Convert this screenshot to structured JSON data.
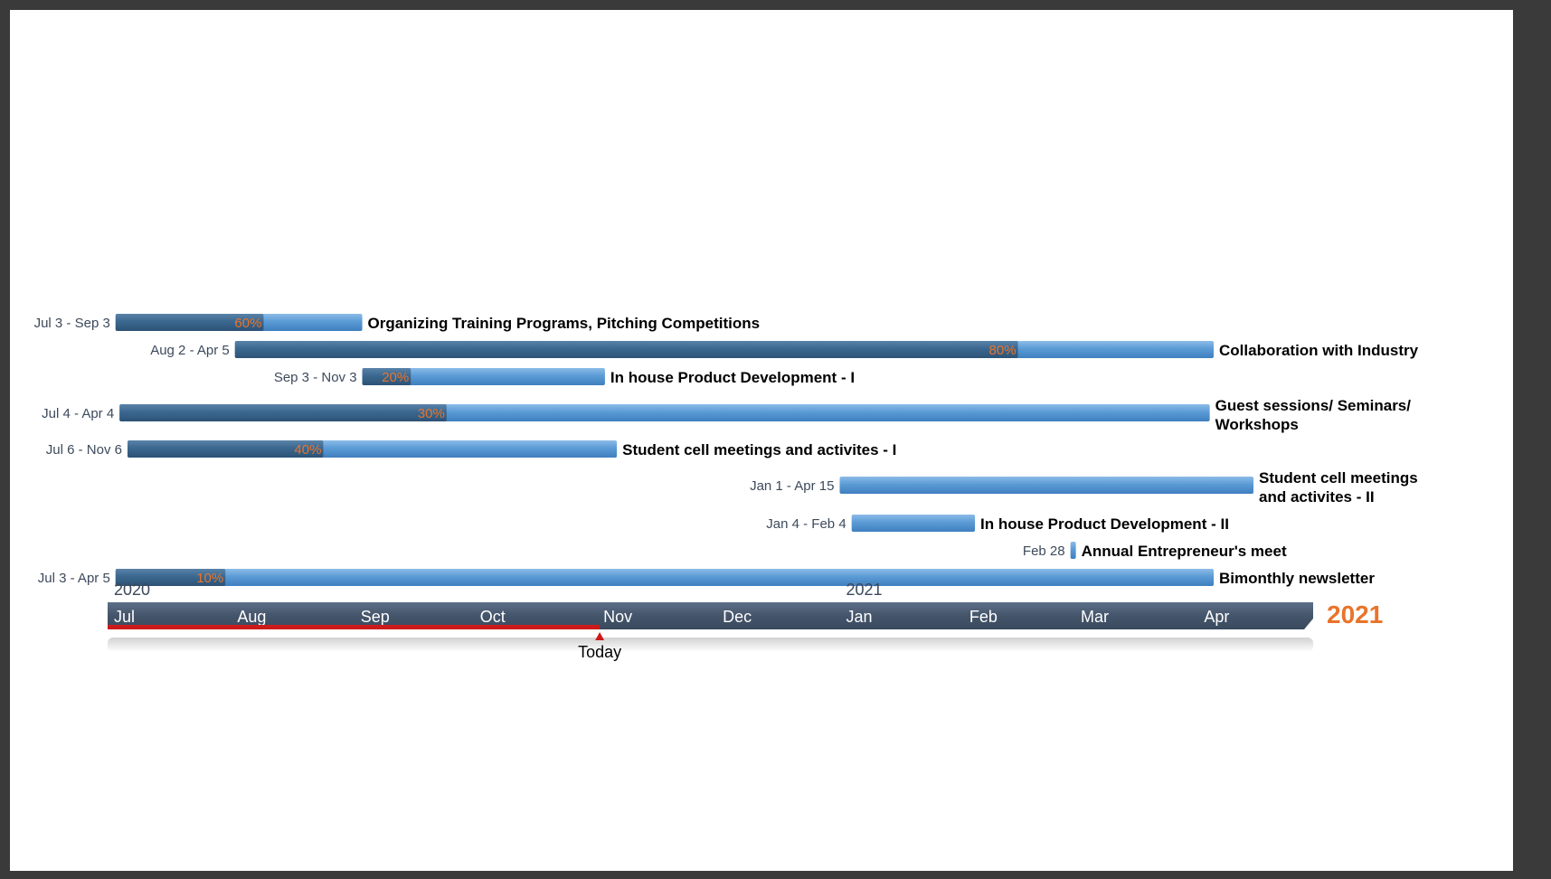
{
  "chart_data": {
    "type": "gantt",
    "x_range": [
      "2020-07-01",
      "2021-04-30"
    ],
    "today": {
      "label": "Today",
      "date": "2020-11-01"
    },
    "end_year_label": "2021",
    "years": [
      {
        "label": "2020",
        "date": "2020-07-01"
      },
      {
        "label": "2021",
        "date": "2021-01-01"
      }
    ],
    "months": [
      {
        "label": "Jul",
        "date": "2020-07-01"
      },
      {
        "label": "Aug",
        "date": "2020-08-01"
      },
      {
        "label": "Sep",
        "date": "2020-09-01"
      },
      {
        "label": "Oct",
        "date": "2020-10-01"
      },
      {
        "label": "Nov",
        "date": "2020-11-01"
      },
      {
        "label": "Dec",
        "date": "2020-12-01"
      },
      {
        "label": "Jan",
        "date": "2021-01-01"
      },
      {
        "label": "Feb",
        "date": "2021-02-01"
      },
      {
        "label": "Mar",
        "date": "2021-03-01"
      },
      {
        "label": "Apr",
        "date": "2021-04-01"
      }
    ],
    "tasks": [
      {
        "name": [
          "Organizing Training Programs, Pitching Competitions"
        ],
        "date_label": "Jul 3 - Sep 3",
        "start": "2020-07-03",
        "end": "2020-09-03",
        "progress": 60,
        "progress_label": "60%"
      },
      {
        "name": [
          "Collaboration with Industry"
        ],
        "date_label": "Aug 2 - Apr 5",
        "start": "2020-08-02",
        "end": "2021-04-05",
        "progress": 80,
        "progress_label": "80%"
      },
      {
        "name": [
          "In house Product Development - I"
        ],
        "date_label": "Sep 3 - Nov 3",
        "start": "2020-09-03",
        "end": "2020-11-03",
        "progress": 20,
        "progress_label": "20%"
      },
      {
        "name": [
          "Guest sessions/ Seminars/",
          "Workshops"
        ],
        "date_label": "Jul 4 - Apr 4",
        "start": "2020-07-04",
        "end": "2021-04-04",
        "progress": 30,
        "progress_label": "30%"
      },
      {
        "name": [
          "Student cell meetings and activites - I"
        ],
        "date_label": "Jul 6 - Nov 6",
        "start": "2020-07-06",
        "end": "2020-11-06",
        "progress": 40,
        "progress_label": "40%"
      },
      {
        "name": [
          "Student cell meetings",
          "and activites - II"
        ],
        "date_label": "Jan 1 - Apr 15",
        "start": "2021-01-01",
        "end": "2021-04-15",
        "progress": 0,
        "progress_label": ""
      },
      {
        "name": [
          "In house Product Development - II"
        ],
        "date_label": "Jan 4 - Feb 4",
        "start": "2021-01-04",
        "end": "2021-02-04",
        "progress": 0,
        "progress_label": ""
      },
      {
        "name": [
          "Annual Entrepreneur's meet"
        ],
        "date_label": "Feb 28",
        "start": "2021-02-28",
        "end": "2021-03-01",
        "progress": 0,
        "progress_label": ""
      },
      {
        "name": [
          "Bimonthly newsletter"
        ],
        "date_label": "Jul 3 - Apr 5",
        "start": "2020-07-03",
        "end": "2021-04-05",
        "progress": 10,
        "progress_label": "10%"
      }
    ],
    "colors": {
      "bar_light": "#5b9bd5",
      "bar_dark": "#3b6890",
      "timeline": "#44546a",
      "today_marker": "#cc1a1a",
      "accent": "#e8742b"
    }
  }
}
